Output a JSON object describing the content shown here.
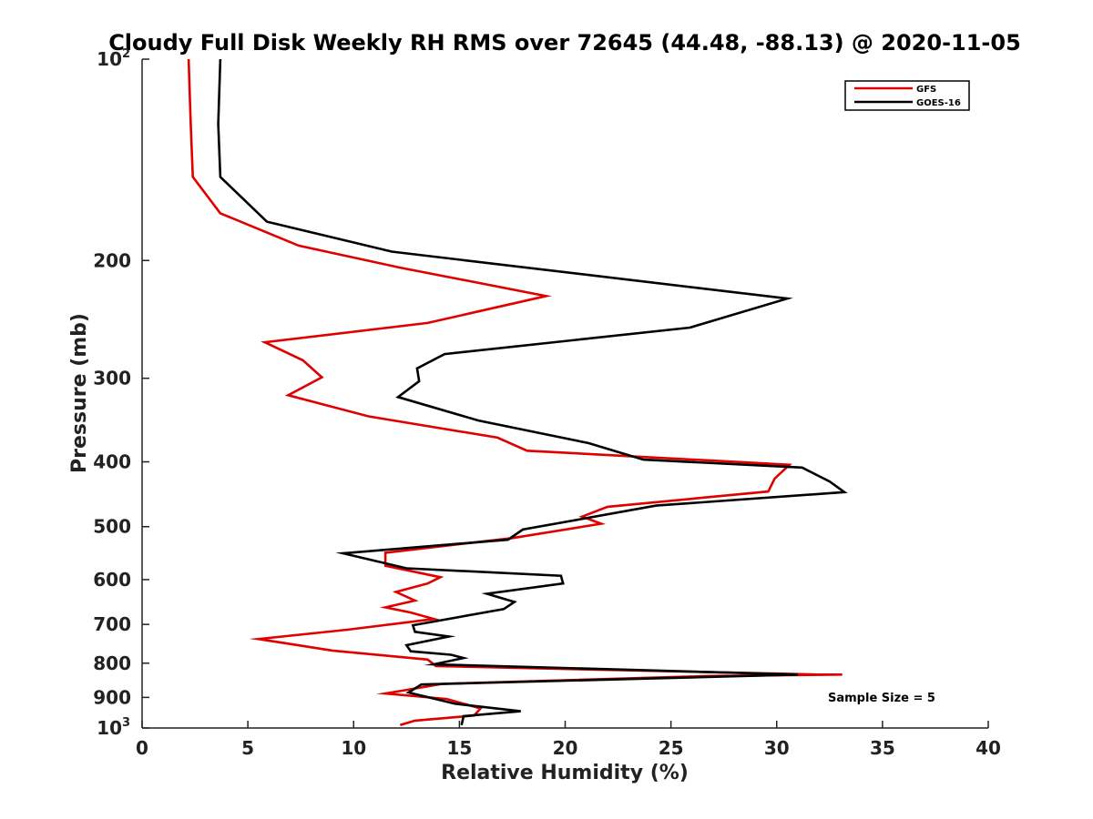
{
  "chart_data": {
    "type": "line",
    "title": "Cloudy Full Disk Weekly RH RMS over 72645 (44.48, -88.13) @ 2020-11-05",
    "xlabel": "Relative Humidity (%)",
    "ylabel": "Pressure (mb)",
    "xlim": [
      0,
      40
    ],
    "ylim": [
      100,
      1000
    ],
    "y_scale": "log",
    "y_reversed": true,
    "grid": false,
    "legend_position": "top-right",
    "x_ticks": [
      "0",
      "5",
      "10",
      "15",
      "20",
      "25",
      "30",
      "35",
      "40"
    ],
    "y_ticks": [
      {
        "value": 100,
        "base": "10",
        "exp": "2",
        "label": ""
      },
      {
        "value": 200,
        "base": "",
        "exp": "",
        "label": "200"
      },
      {
        "value": 300,
        "base": "",
        "exp": "",
        "label": "300"
      },
      {
        "value": 400,
        "base": "",
        "exp": "",
        "label": "400"
      },
      {
        "value": 500,
        "base": "",
        "exp": "",
        "label": "500"
      },
      {
        "value": 600,
        "base": "",
        "exp": "",
        "label": "600"
      },
      {
        "value": 700,
        "base": "",
        "exp": "",
        "label": "700"
      },
      {
        "value": 800,
        "base": "",
        "exp": "",
        "label": "800"
      },
      {
        "value": 900,
        "base": "",
        "exp": "",
        "label": "900"
      },
      {
        "value": 1000,
        "base": "10",
        "exp": "3",
        "label": ""
      }
    ],
    "annotation": "Sample Size = 5",
    "series": [
      {
        "name": "GFS",
        "color": "#e00000",
        "points": [
          [
            2.2,
            100
          ],
          [
            2.3,
            125
          ],
          [
            2.4,
            150
          ],
          [
            3.7,
            170
          ],
          [
            7.4,
            190
          ],
          [
            12.2,
            205
          ],
          [
            19.1,
            226
          ],
          [
            13.5,
            248
          ],
          [
            5.8,
            265
          ],
          [
            7.6,
            282
          ],
          [
            8.5,
            299
          ],
          [
            6.9,
            318
          ],
          [
            10.7,
            342
          ],
          [
            16.8,
            368
          ],
          [
            18.2,
            385
          ],
          [
            30.6,
            404
          ],
          [
            29.9,
            424
          ],
          [
            29.6,
            443
          ],
          [
            22.0,
            467
          ],
          [
            20.8,
            483
          ],
          [
            21.7,
            495
          ],
          [
            17.5,
            520
          ],
          [
            11.5,
            547
          ],
          [
            11.5,
            572
          ],
          [
            14.1,
            595
          ],
          [
            13.5,
            608
          ],
          [
            12.0,
            626
          ],
          [
            12.9,
            645
          ],
          [
            11.5,
            660
          ],
          [
            12.7,
            672
          ],
          [
            13.8,
            687
          ],
          [
            9.7,
            713
          ],
          [
            5.5,
            736
          ],
          [
            9.0,
            766
          ],
          [
            13.5,
            790
          ],
          [
            13.9,
            808
          ],
          [
            32.0,
            832
          ],
          [
            33.1,
            832
          ],
          [
            26.9,
            836
          ],
          [
            14.2,
            859
          ],
          [
            11.5,
            888
          ],
          [
            14.4,
            905
          ],
          [
            16.0,
            935
          ],
          [
            15.7,
            958
          ],
          [
            12.9,
            975
          ],
          [
            12.2,
            990
          ]
        ]
      },
      {
        "name": "GOES-16",
        "color": "#000000",
        "points": [
          [
            3.7,
            100
          ],
          [
            3.6,
            125
          ],
          [
            3.7,
            150
          ],
          [
            5.9,
            175
          ],
          [
            11.8,
            194
          ],
          [
            30.5,
            228
          ],
          [
            25.9,
            252
          ],
          [
            14.3,
            276
          ],
          [
            13.0,
            290
          ],
          [
            13.1,
            303
          ],
          [
            12.1,
            320
          ],
          [
            15.9,
            347
          ],
          [
            21.1,
            375
          ],
          [
            23.7,
            397
          ],
          [
            31.2,
            408
          ],
          [
            32.5,
            428
          ],
          [
            33.2,
            444
          ],
          [
            24.3,
            465
          ],
          [
            18.0,
            505
          ],
          [
            17.3,
            523
          ],
          [
            9.5,
            548
          ],
          [
            12.5,
            577
          ],
          [
            19.8,
            592
          ],
          [
            19.9,
            608
          ],
          [
            16.3,
            630
          ],
          [
            17.6,
            648
          ],
          [
            17.1,
            664
          ],
          [
            12.8,
            702
          ],
          [
            12.9,
            718
          ],
          [
            14.5,
            730
          ],
          [
            12.5,
            752
          ],
          [
            12.7,
            768
          ],
          [
            14.6,
            777
          ],
          [
            15.2,
            786
          ],
          [
            13.8,
            803
          ],
          [
            31.0,
            832
          ],
          [
            13.2,
            861
          ],
          [
            12.6,
            885
          ],
          [
            14.8,
            920
          ],
          [
            17.9,
            944
          ],
          [
            15.2,
            960
          ],
          [
            15.1,
            990
          ]
        ]
      }
    ]
  }
}
